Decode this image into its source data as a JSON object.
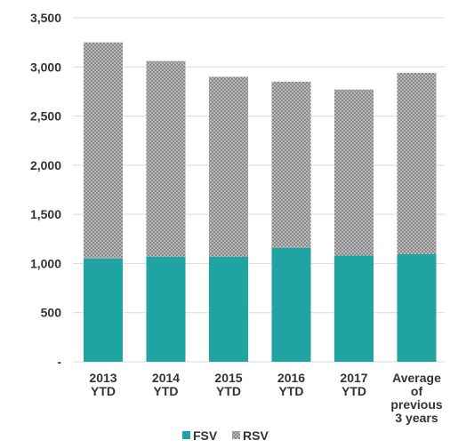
{
  "chart_data": {
    "type": "bar",
    "stacked": true,
    "categories": [
      [
        "2013",
        "YTD"
      ],
      [
        "2014",
        "YTD"
      ],
      [
        "2015",
        "YTD"
      ],
      [
        "2016",
        "YTD"
      ],
      [
        "2017",
        "YTD"
      ],
      [
        "Average",
        "of",
        "previous",
        "3 years"
      ]
    ],
    "series": [
      {
        "name": "FSV",
        "color": "#1fa3a3",
        "pattern": "solid",
        "values": [
          1050,
          1070,
          1070,
          1160,
          1080,
          1095
        ]
      },
      {
        "name": "RSV",
        "color": "#9a9a9a",
        "pattern": "dotted-grey",
        "values": [
          2200,
          1990,
          1830,
          1690,
          1690,
          1845
        ]
      }
    ],
    "yticks": [
      "-",
      "500",
      "1,000",
      "1,500",
      "2,000",
      "2,500",
      "3,000",
      "3,500"
    ],
    "ylim": [
      0,
      3500
    ],
    "ystep": 500,
    "grid": true,
    "legend_position": "bottom",
    "title": "",
    "xlabel": "",
    "ylabel": ""
  }
}
